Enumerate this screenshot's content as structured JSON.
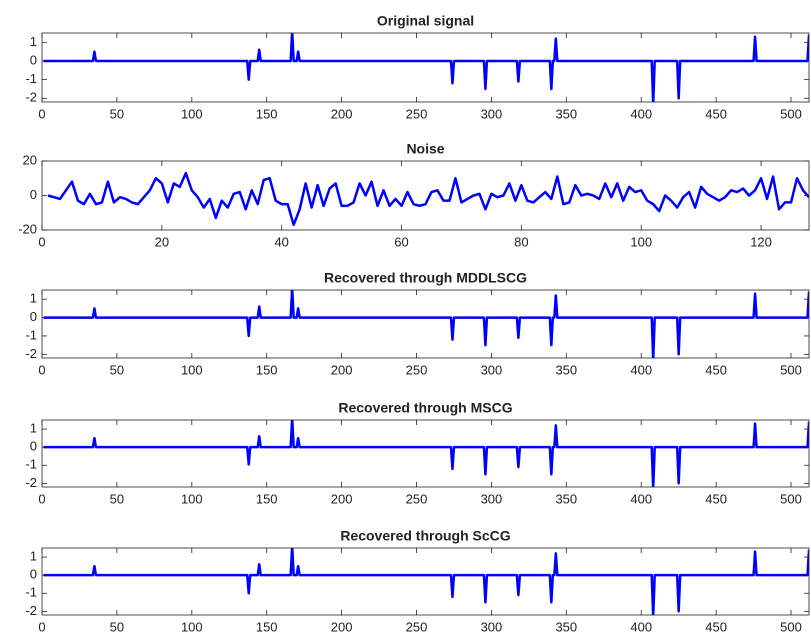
{
  "chart_data": [
    {
      "type": "line",
      "title": "Original signal",
      "color": "#0000ff",
      "x": [
        1,
        34,
        35,
        36,
        137,
        138,
        139,
        144,
        145,
        146,
        166,
        167,
        168,
        170,
        171,
        172,
        273,
        274,
        275,
        295,
        296,
        297,
        317,
        318,
        319,
        339,
        340,
        341,
        342,
        343,
        344,
        407,
        408,
        409,
        424,
        425,
        426,
        475,
        476,
        477,
        511,
        512
      ],
      "values": [
        0,
        0,
        0.5,
        0,
        0,
        -1,
        0,
        0,
        0.6,
        0,
        0,
        1.6,
        0,
        0,
        0.5,
        0,
        0,
        -1.2,
        0,
        0,
        -1.5,
        0,
        0,
        -1.1,
        0,
        0,
        -1.5,
        0,
        0,
        1.2,
        0,
        0,
        -2.3,
        0,
        0,
        -2,
        0,
        0,
        1.3,
        0,
        0,
        1.4
      ],
      "xlim": [
        0,
        512
      ],
      "xticks": [
        0,
        50,
        100,
        150,
        200,
        250,
        300,
        350,
        400,
        450,
        500
      ],
      "ylim": [
        -2.2,
        1.5
      ],
      "yticks": [
        -2,
        -1,
        0,
        1
      ]
    },
    {
      "type": "line",
      "title": "Noise",
      "color": "#0000ff",
      "x": [
        1,
        2,
        3,
        4,
        5,
        6,
        7,
        8,
        9,
        10,
        11,
        12,
        13,
        14,
        15,
        16,
        17,
        18,
        19,
        20,
        21,
        22,
        23,
        24,
        25,
        26,
        27,
        28,
        29,
        30,
        31,
        32,
        33,
        34,
        35,
        36,
        37,
        38,
        39,
        40,
        41,
        42,
        43,
        44,
        45,
        46,
        47,
        48,
        49,
        50,
        51,
        52,
        53,
        54,
        55,
        56,
        57,
        58,
        59,
        60,
        61,
        62,
        63,
        64,
        65,
        66,
        67,
        68,
        69,
        70,
        71,
        72,
        73,
        74,
        75,
        76,
        77,
        78,
        79,
        80,
        81,
        82,
        83,
        84,
        85,
        86,
        87,
        88,
        89,
        90,
        91,
        92,
        93,
        94,
        95,
        96,
        97,
        98,
        99,
        100,
        101,
        102,
        103,
        104,
        105,
        106,
        107,
        108,
        109,
        110,
        111,
        112,
        113,
        114,
        115,
        116,
        117,
        118,
        119,
        120,
        121,
        122,
        123,
        124,
        125,
        126,
        127,
        128
      ],
      "values": [
        0,
        -1,
        -2,
        3,
        8,
        -3,
        -5,
        1,
        -5,
        -4,
        8,
        -4,
        -1,
        -2,
        -4,
        -5,
        -1,
        3,
        10,
        7,
        -4,
        7,
        5,
        13,
        3,
        -1,
        -7,
        -2,
        -13,
        -3,
        -7,
        1,
        2,
        -8,
        3,
        -5,
        9,
        10,
        -3,
        -5,
        -5,
        -17,
        -8,
        7,
        -7,
        6,
        -6,
        4,
        7,
        -6,
        -6,
        -4,
        7,
        0,
        8,
        -6,
        3,
        -6,
        -2,
        -6,
        2,
        -5,
        -6,
        -5,
        2,
        3,
        -3,
        -3,
        10,
        -4,
        -2,
        0,
        1,
        -8,
        1,
        -1,
        0,
        7,
        -3,
        6,
        -3,
        -4,
        -1,
        2,
        -2,
        11,
        -5,
        -4,
        6,
        0,
        1,
        0,
        -2,
        7,
        -1,
        7,
        -3,
        5,
        2,
        3,
        -3,
        -5,
        -9,
        0,
        -3,
        -7,
        -1,
        2,
        -7,
        5,
        1,
        -1,
        -3,
        -1,
        3,
        2,
        4,
        0,
        3,
        10,
        -2,
        11,
        -8,
        -4,
        -4,
        10,
        3,
        -1
      ],
      "xlim": [
        0,
        128
      ],
      "xticks": [
        0,
        20,
        40,
        60,
        80,
        100,
        120
      ],
      "ylim": [
        -20,
        20
      ],
      "yticks": [
        -20,
        0,
        20
      ]
    },
    {
      "type": "line",
      "title": "Recovered through MDDLSCG",
      "color": "#0000ff",
      "x": [
        1,
        34,
        35,
        36,
        137,
        138,
        139,
        144,
        145,
        146,
        166,
        167,
        168,
        170,
        171,
        172,
        273,
        274,
        275,
        295,
        296,
        297,
        317,
        318,
        319,
        339,
        340,
        341,
        342,
        343,
        344,
        407,
        408,
        409,
        424,
        425,
        426,
        475,
        476,
        477,
        511,
        512
      ],
      "values": [
        0,
        0,
        0.5,
        0,
        0,
        -1,
        0,
        0,
        0.6,
        0,
        0,
        1.6,
        0,
        0,
        0.5,
        0,
        0,
        -1.2,
        0,
        0,
        -1.5,
        0,
        0,
        -1.1,
        0,
        0,
        -1.5,
        0,
        0,
        1.2,
        0,
        0,
        -2.3,
        0,
        0,
        -2,
        0,
        0,
        1.3,
        0,
        0,
        1.4
      ],
      "xlim": [
        0,
        512
      ],
      "xticks": [
        0,
        50,
        100,
        150,
        200,
        250,
        300,
        350,
        400,
        450,
        500
      ],
      "ylim": [
        -2.2,
        1.5
      ],
      "yticks": [
        -2,
        -1,
        0,
        1
      ]
    },
    {
      "type": "line",
      "title": "Recovered through MSCG",
      "color": "#0000ff",
      "x": [
        1,
        34,
        35,
        36,
        137,
        138,
        139,
        144,
        145,
        146,
        166,
        167,
        168,
        170,
        171,
        172,
        273,
        274,
        275,
        295,
        296,
        297,
        317,
        318,
        319,
        339,
        340,
        341,
        342,
        343,
        344,
        407,
        408,
        409,
        424,
        425,
        426,
        475,
        476,
        477,
        511,
        512
      ],
      "values": [
        0,
        0,
        0.5,
        0,
        0,
        -0.95,
        0,
        0,
        0.6,
        0,
        0,
        1.6,
        0,
        0,
        0.5,
        0,
        0,
        -1.2,
        0,
        0,
        -1.5,
        0,
        0,
        -1.1,
        0,
        0,
        -1.5,
        0,
        0,
        1.2,
        0,
        0,
        -2.3,
        0,
        0,
        -2,
        0,
        0,
        1.3,
        0,
        0,
        1.4
      ],
      "xlim": [
        0,
        512
      ],
      "xticks": [
        0,
        50,
        100,
        150,
        200,
        250,
        300,
        350,
        400,
        450,
        500
      ],
      "ylim": [
        -2.2,
        1.5
      ],
      "yticks": [
        -2,
        -1,
        0,
        1
      ]
    },
    {
      "type": "line",
      "title": "Recovered through ScCG",
      "color": "#0000ff",
      "x": [
        1,
        34,
        35,
        36,
        137,
        138,
        139,
        144,
        145,
        146,
        166,
        167,
        168,
        170,
        171,
        172,
        273,
        274,
        275,
        295,
        296,
        297,
        317,
        318,
        319,
        339,
        340,
        341,
        342,
        343,
        344,
        407,
        408,
        409,
        424,
        425,
        426,
        475,
        476,
        477,
        511,
        512
      ],
      "values": [
        0,
        0,
        0.5,
        0,
        0,
        -1,
        0,
        0,
        0.6,
        0,
        0,
        1.6,
        0,
        0,
        0.5,
        0,
        0,
        -1.2,
        0,
        0,
        -1.5,
        0,
        0,
        -1.1,
        0,
        0,
        -1.5,
        0,
        0,
        1.2,
        0,
        0,
        -2.3,
        0,
        0,
        -2,
        0,
        0,
        1.3,
        0,
        0,
        1.4
      ],
      "xlim": [
        0,
        512
      ],
      "xticks": [
        0,
        50,
        100,
        150,
        200,
        250,
        300,
        350,
        400,
        450,
        500
      ],
      "ylim": [
        -2.2,
        1.5
      ],
      "yticks": [
        -2,
        -1,
        0,
        1
      ]
    }
  ]
}
